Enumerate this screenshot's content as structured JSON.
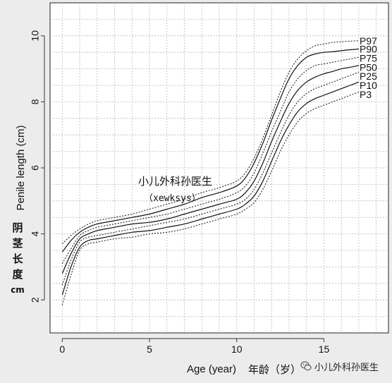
{
  "chart_data": {
    "type": "line",
    "xlabel": "Age (year)",
    "ylabel": "Penile length (cm)",
    "xlim": [
      -0.7,
      18.7
    ],
    "ylim": [
      1,
      11
    ],
    "xticks": [
      0,
      5,
      10,
      15
    ],
    "yticks": [
      2,
      4,
      6,
      8,
      10
    ],
    "grid": true,
    "x": [
      0,
      0.5,
      1,
      1.5,
      2,
      3,
      4,
      5,
      6,
      7,
      8,
      9,
      10,
      10.5,
      11,
      11.5,
      12,
      12.5,
      13,
      13.5,
      14,
      14.5,
      15,
      15.5,
      16,
      16.5,
      17
    ],
    "series": [
      {
        "name": "P97",
        "style": "dotted",
        "values": [
          3.7,
          3.95,
          4.15,
          4.3,
          4.4,
          4.5,
          4.6,
          4.75,
          4.9,
          5.05,
          5.25,
          5.4,
          5.6,
          5.85,
          6.3,
          6.9,
          7.6,
          8.3,
          8.9,
          9.3,
          9.55,
          9.7,
          9.75,
          9.8,
          9.82,
          9.84,
          9.85
        ]
      },
      {
        "name": "P90",
        "style": "solid",
        "values": [
          3.45,
          3.8,
          4.05,
          4.2,
          4.3,
          4.4,
          4.5,
          4.6,
          4.75,
          4.9,
          5.1,
          5.25,
          5.45,
          5.7,
          6.15,
          6.75,
          7.45,
          8.1,
          8.7,
          9.1,
          9.35,
          9.45,
          9.5,
          9.52,
          9.55,
          9.58,
          9.6
        ]
      },
      {
        "name": "P75",
        "style": "dotted",
        "values": [
          3.1,
          3.55,
          3.95,
          4.1,
          4.2,
          4.3,
          4.4,
          4.5,
          4.6,
          4.75,
          4.9,
          5.05,
          5.25,
          5.45,
          5.85,
          6.45,
          7.1,
          7.7,
          8.3,
          8.7,
          8.95,
          9.1,
          9.15,
          9.2,
          9.25,
          9.3,
          9.35
        ]
      },
      {
        "name": "P50",
        "style": "solid",
        "values": [
          2.8,
          3.4,
          3.85,
          4.0,
          4.1,
          4.2,
          4.3,
          4.35,
          4.45,
          4.6,
          4.75,
          4.9,
          5.05,
          5.25,
          5.6,
          6.15,
          6.8,
          7.4,
          7.95,
          8.35,
          8.6,
          8.75,
          8.85,
          8.92,
          9.0,
          9.05,
          9.1
        ]
      },
      {
        "name": "P25",
        "style": "dotted",
        "values": [
          2.45,
          3.2,
          3.75,
          3.9,
          3.95,
          4.05,
          4.15,
          4.25,
          4.35,
          4.45,
          4.6,
          4.75,
          4.9,
          5.05,
          5.35,
          5.85,
          6.45,
          7.05,
          7.6,
          8.0,
          8.25,
          8.4,
          8.5,
          8.6,
          8.7,
          8.8,
          8.9
        ]
      },
      {
        "name": "P10",
        "style": "solid",
        "values": [
          2.15,
          3.0,
          3.6,
          3.8,
          3.85,
          3.95,
          4.05,
          4.1,
          4.2,
          4.3,
          4.45,
          4.6,
          4.75,
          4.9,
          5.15,
          5.6,
          6.2,
          6.8,
          7.3,
          7.7,
          7.95,
          8.1,
          8.2,
          8.3,
          8.4,
          8.5,
          8.6
        ]
      },
      {
        "name": "P3",
        "style": "dotted",
        "values": [
          1.85,
          2.75,
          3.5,
          3.7,
          3.75,
          3.85,
          3.9,
          4.0,
          4.05,
          4.15,
          4.3,
          4.45,
          4.6,
          4.75,
          4.95,
          5.35,
          5.9,
          6.5,
          7.0,
          7.4,
          7.65,
          7.8,
          7.9,
          8.0,
          8.1,
          8.2,
          8.3
        ]
      }
    ],
    "series_labels": [
      {
        "name": "P97",
        "label_y": 9.85
      },
      {
        "name": "P90",
        "label_y": 9.6
      },
      {
        "name": "P75",
        "label_y": 9.32
      },
      {
        "name": "P50",
        "label_y": 9.05
      },
      {
        "name": "P25",
        "label_y": 8.78
      },
      {
        "name": "P10",
        "label_y": 8.5
      },
      {
        "name": "P3",
        "label_y": 8.22
      }
    ]
  },
  "watermark": {
    "title": "小儿外科孙医生",
    "subtitle": "（xewksys）"
  },
  "y_axis_cn": {
    "chars": [
      "阴",
      "茎",
      "长",
      "度"
    ],
    "unit": "cm"
  },
  "x_axis_cn": "年龄（岁）",
  "brand": {
    "text": "小儿外科孙医生",
    "icon": "wechat-icon"
  },
  "colors": {
    "background": "#ececec",
    "plot_bg": "#ffffff",
    "line": "#111111",
    "grid": "#b8b8b8"
  }
}
